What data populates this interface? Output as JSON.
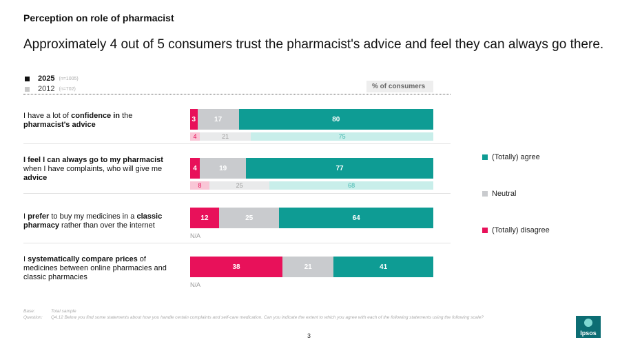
{
  "header": {
    "section_title": "Perception on role of pharmacist",
    "headline": "Approximately 4 out of 5 consumers trust the pharmacist's advice and feel they can always go there."
  },
  "year_legend": [
    {
      "year": "2025",
      "n": "(n=1005)",
      "color": "#111111"
    },
    {
      "year": "2012",
      "n": "(n=702)",
      "color": "#c8c8c8"
    }
  ],
  "unit_label": "% of consumers",
  "colors": {
    "agree": "#0e9c94",
    "neutral": "#c9cbce",
    "disagree": "#e8115a",
    "agree_light": "#c8eeea",
    "neutral_light": "#e9eaeb",
    "disagree_light": "#f9c6d6",
    "agree_text_light": "#3fb6ad",
    "neutral_text_light": "#999999",
    "disagree_text_light": "#e8115a"
  },
  "chart_data": {
    "type": "bar",
    "orientation": "horizontal",
    "stacked": true,
    "unit": "% of consumers",
    "categories_order": [
      "(Totally) disagree",
      "Neutral",
      "(Totally) agree"
    ],
    "legend": [
      "(Totally) agree",
      "Neutral",
      "(Totally) disagree"
    ],
    "legend_position": "right",
    "rows": [
      {
        "statement_parts": [
          {
            "t": "I have a lot of ",
            "b": false
          },
          {
            "t": "confidence in",
            "b": true
          },
          {
            "t": " the ",
            "b": false
          },
          {
            "t": "pharmacist's advice",
            "b": true
          }
        ],
        "values_2025": {
          "disagree": 3,
          "neutral": 17,
          "agree": 80
        },
        "values_2012": {
          "disagree": 4,
          "neutral": 21,
          "agree": 75
        }
      },
      {
        "statement_parts": [
          {
            "t": "I feel I can always go to my pharmacist",
            "b": true
          },
          {
            "t": " when I have complaints, who will give me ",
            "b": false
          },
          {
            "t": "advice",
            "b": true
          }
        ],
        "values_2025": {
          "disagree": 4,
          "neutral": 19,
          "agree": 77
        },
        "values_2012": {
          "disagree": 8,
          "neutral": 25,
          "agree": 68
        }
      },
      {
        "statement_parts": [
          {
            "t": "I ",
            "b": false
          },
          {
            "t": "prefer",
            "b": true
          },
          {
            "t": " to buy my medicines in a ",
            "b": false
          },
          {
            "t": "classic pharmacy",
            "b": true
          },
          {
            "t": " rather than over the internet",
            "b": false
          }
        ],
        "values_2025": {
          "disagree": 12,
          "neutral": 25,
          "agree": 64
        },
        "values_2012": null,
        "na_label": "N/A"
      },
      {
        "statement_parts": [
          {
            "t": "I ",
            "b": false
          },
          {
            "t": "systematically compare prices",
            "b": true
          },
          {
            "t": " of medicines between online pharmacies and classic pharmacies",
            "b": false
          }
        ],
        "values_2025": {
          "disagree": 38,
          "neutral": 21,
          "agree": 41
        },
        "values_2012": null,
        "na_label": "N/A"
      }
    ]
  },
  "footnote": {
    "base_key": "Base:",
    "base_value": "Total sample",
    "question_key": "Question:",
    "question_value": "Q4.12 Below you find some statements about how you handle certain complaints and self-care medication. Can you indicate the extent to which you agree with each of the following statements using the following scale?"
  },
  "page_number": "3",
  "logo_text": "Ipsos"
}
